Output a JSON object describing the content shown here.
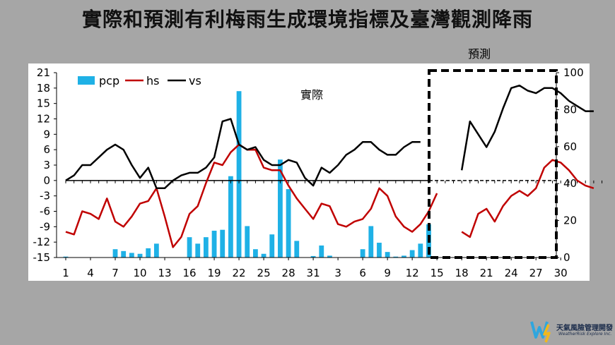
{
  "title": "實際和預測有利梅雨生成環境指標及臺灣觀測降雨",
  "logo": {
    "name": "天氣風險管理開發",
    "subtitle": "WeatherRisk Explore Inc.",
    "icon": "weatherrisk-logo-icon"
  },
  "chart_data": {
    "type": "bar-line",
    "annotations": {
      "actual": "實際",
      "forecast": "預測"
    },
    "x_ticks": [
      "1",
      "4",
      "7",
      "10",
      "13",
      "16",
      "19",
      "22",
      "25",
      "28",
      "31",
      "3",
      "6",
      "9",
      "12",
      "15",
      "18",
      "21",
      "24",
      "27",
      "30"
    ],
    "y_left": {
      "ticks": [
        21,
        18,
        15,
        12,
        9,
        6,
        3,
        0,
        -3,
        -6,
        -9,
        -12,
        -15
      ],
      "range": [
        -15,
        21
      ]
    },
    "y_right": {
      "ticks": [
        100,
        80,
        60,
        40,
        20,
        0
      ],
      "range": [
        0,
        100
      ]
    },
    "legend": [
      {
        "name": "pcp",
        "color": "#1fb1e6",
        "kind": "bar"
      },
      {
        "name": "hs",
        "color": "#c00000",
        "kind": "line"
      },
      {
        "name": "vs",
        "color": "#000000",
        "kind": "line"
      }
    ],
    "pcp_right_axis": [
      [
        1,
        0.5
      ],
      [
        7,
        4.5
      ],
      [
        8,
        3.5
      ],
      [
        9,
        2.5
      ],
      [
        10,
        2
      ],
      [
        11,
        5
      ],
      [
        12,
        7.5
      ],
      [
        16,
        11
      ],
      [
        17,
        7.5
      ],
      [
        18,
        11
      ],
      [
        19,
        14.5
      ],
      [
        20,
        15
      ],
      [
        21,
        44
      ],
      [
        22,
        90
      ],
      [
        23,
        17
      ],
      [
        24,
        4.5
      ],
      [
        25,
        2
      ],
      [
        26,
        12.5
      ],
      [
        27,
        53
      ],
      [
        28,
        37
      ],
      [
        29,
        9
      ],
      [
        31,
        0.8
      ],
      [
        32,
        6.5
      ],
      [
        33,
        1
      ],
      [
        37,
        4.5
      ],
      [
        38,
        17
      ],
      [
        39,
        8
      ],
      [
        40,
        3
      ],
      [
        41,
        0.5
      ],
      [
        42,
        1
      ],
      [
        43,
        4
      ],
      [
        44,
        7.5
      ],
      [
        45,
        18
      ]
    ],
    "hs": [
      [
        1,
        -10
      ],
      [
        2,
        -10.5
      ],
      [
        3,
        -6
      ],
      [
        4,
        -6.5
      ],
      [
        5,
        -7.5
      ],
      [
        6,
        -3.5
      ],
      [
        7,
        -8
      ],
      [
        8,
        -9
      ],
      [
        9,
        -7
      ],
      [
        10,
        -4.5
      ],
      [
        11,
        -4
      ],
      [
        12,
        -1.5
      ],
      [
        13,
        -7
      ],
      [
        14,
        -13
      ],
      [
        15,
        -11
      ],
      [
        16,
        -6.5
      ],
      [
        17,
        -5
      ],
      [
        18,
        -0.5
      ],
      [
        19,
        3.5
      ],
      [
        20,
        3
      ],
      [
        21,
        5.5
      ],
      [
        22,
        7
      ],
      [
        23,
        6
      ],
      [
        24,
        6
      ],
      [
        25,
        2.5
      ],
      [
        26,
        2
      ],
      [
        27,
        2
      ],
      [
        28,
        -1
      ],
      [
        29,
        -3.5
      ],
      [
        30,
        -5.5
      ],
      [
        31,
        -7.5
      ],
      [
        32,
        -4.5
      ],
      [
        33,
        -5
      ],
      [
        34,
        -8.5
      ],
      [
        35,
        -9
      ],
      [
        36,
        -8
      ],
      [
        37,
        -7.5
      ],
      [
        38,
        -5.5
      ],
      [
        39,
        -1.5
      ],
      [
        40,
        -3
      ],
      [
        41,
        -7
      ],
      [
        42,
        -9
      ],
      [
        43,
        -10
      ],
      [
        44,
        -8.5
      ],
      [
        45,
        -6
      ],
      [
        46,
        -2.5
      ],
      [
        49,
        -10
      ],
      [
        50,
        -11
      ],
      [
        51,
        -6.5
      ],
      [
        52,
        -5.5
      ],
      [
        53,
        -8
      ],
      [
        54,
        -5
      ],
      [
        55,
        -3
      ],
      [
        56,
        -2
      ],
      [
        57,
        -3
      ],
      [
        58,
        -1.5
      ],
      [
        59,
        2.5
      ],
      [
        60,
        4
      ],
      [
        61,
        3.5
      ],
      [
        62,
        2
      ],
      [
        63,
        0
      ],
      [
        64,
        -1
      ],
      [
        65,
        -1.5
      ]
    ],
    "vs": [
      [
        1,
        0
      ],
      [
        2,
        1
      ],
      [
        3,
        3
      ],
      [
        4,
        3
      ],
      [
        5,
        4.5
      ],
      [
        6,
        6
      ],
      [
        7,
        7
      ],
      [
        8,
        6
      ],
      [
        9,
        3
      ],
      [
        10,
        0.5
      ],
      [
        11,
        2.5
      ],
      [
        12,
        -1.5
      ],
      [
        13,
        -1.5
      ],
      [
        14,
        0
      ],
      [
        15,
        1
      ],
      [
        16,
        1.5
      ],
      [
        17,
        1.5
      ],
      [
        18,
        2.5
      ],
      [
        19,
        4.5
      ],
      [
        20,
        11.5
      ],
      [
        21,
        12
      ],
      [
        22,
        7
      ],
      [
        23,
        6
      ],
      [
        24,
        6.5
      ],
      [
        25,
        4
      ],
      [
        26,
        3
      ],
      [
        27,
        3
      ],
      [
        28,
        4
      ],
      [
        29,
        3.5
      ],
      [
        30,
        0.5
      ],
      [
        31,
        -1
      ],
      [
        32,
        2.5
      ],
      [
        33,
        1.5
      ],
      [
        34,
        3
      ],
      [
        35,
        5
      ],
      [
        36,
        6
      ],
      [
        37,
        7.5
      ],
      [
        38,
        7.5
      ],
      [
        39,
        6
      ],
      [
        40,
        5
      ],
      [
        41,
        5
      ],
      [
        42,
        6.5
      ],
      [
        43,
        7.5
      ],
      [
        44,
        7.5
      ],
      [
        49,
        2
      ],
      [
        50,
        11.5
      ],
      [
        51,
        9
      ],
      [
        52,
        6.5
      ],
      [
        53,
        9.5
      ],
      [
        54,
        14
      ],
      [
        55,
        18
      ],
      [
        56,
        18.5
      ],
      [
        57,
        17.5
      ],
      [
        58,
        17
      ],
      [
        59,
        18
      ],
      [
        60,
        18
      ],
      [
        61,
        17
      ],
      [
        62,
        15.5
      ],
      [
        63,
        14.5
      ],
      [
        64,
        13.5
      ],
      [
        65,
        13.5
      ]
    ]
  }
}
